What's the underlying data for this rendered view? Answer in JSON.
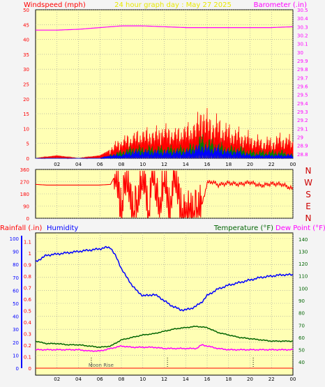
{
  "header": {
    "windspeed_title": "Windspeed (mph)",
    "center_title": "24 hour graph day : May 27 2025",
    "barometer_title": "Barometer (.in)"
  },
  "mid": {
    "compass": [
      "N",
      "W",
      "S",
      "E",
      "N"
    ]
  },
  "bottom_header": {
    "rainfall_title": "Rainfall (.in)",
    "humidity_title": "Humidity",
    "temperature_title": "Temperature (°F)",
    "dewpoint_title": "Dew Point (°F)"
  },
  "annotations": {
    "moon": "Moon Rise"
  },
  "colors": {
    "background": "#f4f4f4",
    "panel": "#ffffb4",
    "wind": "#ff0000",
    "gust": "#ff0000",
    "wind_green": "#008000",
    "wind_blue": "#0000ff",
    "barometer": "#ff00ff",
    "humidity": "#0000ff",
    "temperature": "#006400",
    "dewpoint": "#ff00ff",
    "yellow_text": "#e8e800"
  },
  "chart_data": [
    {
      "type": "line",
      "title": "24 hour graph day : May 27 2025",
      "x_ticks": [
        "02",
        "04",
        "06",
        "08",
        "10",
        "12",
        "14",
        "16",
        "18",
        "20",
        "22",
        "00"
      ],
      "xlim": [
        0,
        24
      ],
      "left_axis": {
        "label": "Windspeed (mph)",
        "ticks": [
          0,
          5,
          10,
          15,
          20,
          25,
          30,
          35,
          40,
          45,
          50
        ],
        "ylim": [
          0,
          50
        ]
      },
      "right_axis": {
        "label": "Barometer (.in)",
        "ticks": [
          28.8,
          28.9,
          29,
          29.1,
          29.2,
          29.3,
          29.4,
          29.5,
          29.6,
          29.7,
          29.8,
          29.9,
          30,
          30.1,
          30.2,
          30.3,
          30.4,
          30.5
        ],
        "ylim": [
          28.75,
          30.5
        ]
      },
      "grid": true,
      "series": [
        {
          "name": "Barometer (.in)",
          "axis": "right",
          "x": [
            0,
            2,
            4,
            6,
            8,
            10,
            12,
            14,
            16,
            18,
            20,
            22,
            24
          ],
          "values": [
            30.26,
            30.26,
            30.27,
            30.29,
            30.31,
            30.31,
            30.3,
            30.29,
            30.29,
            30.29,
            30.29,
            30.29,
            30.3
          ]
        },
        {
          "name": "Windspeed (mph)",
          "axis": "left",
          "x": [
            0,
            2,
            4,
            6,
            7,
            8,
            9,
            10,
            11,
            12,
            13,
            14,
            15,
            15.5,
            16,
            17,
            18,
            19,
            20,
            21,
            22,
            23,
            24
          ],
          "values": [
            0,
            0,
            0,
            0,
            2,
            4,
            5,
            6,
            6,
            7,
            6,
            7,
            8,
            10,
            8,
            7,
            6,
            5,
            4,
            3,
            3,
            4,
            3
          ]
        },
        {
          "name": "gust",
          "axis": "left",
          "x": [
            0,
            2,
            4,
            6,
            7,
            8,
            9,
            10,
            11,
            12,
            13,
            14,
            15,
            15.5,
            16,
            17,
            18,
            19,
            20,
            21,
            22,
            23,
            24
          ],
          "values": [
            0,
            1,
            0,
            1,
            3,
            5,
            6,
            7,
            7,
            8,
            7,
            8,
            9,
            14,
            11,
            10,
            8,
            7,
            6,
            5,
            5,
            6,
            5
          ]
        },
        {
          "name": "average",
          "axis": "left",
          "x": [
            0,
            2,
            4,
            6,
            7,
            8,
            9,
            10,
            11,
            12,
            13,
            14,
            15,
            15.5,
            16,
            17,
            18,
            19,
            20,
            21,
            22,
            23,
            24
          ],
          "values": [
            0,
            0,
            0,
            0,
            1,
            2,
            3,
            3,
            3,
            3,
            3,
            3,
            4,
            6,
            5,
            4,
            3,
            3,
            2,
            2,
            2,
            2,
            1
          ]
        },
        {
          "name": "lull",
          "axis": "left",
          "x": [
            0,
            2,
            4,
            6,
            7,
            8,
            9,
            10,
            11,
            12,
            13,
            14,
            15,
            15.5,
            16,
            17,
            18,
            19,
            20,
            21,
            22,
            23,
            24
          ],
          "values": [
            0,
            0,
            0,
            0,
            1,
            1,
            2,
            2,
            2,
            2,
            2,
            2,
            3,
            4,
            3,
            3,
            2,
            2,
            1,
            1,
            1,
            1,
            1
          ]
        }
      ]
    },
    {
      "type": "line",
      "title": "",
      "x_ticks": [
        "02",
        "04",
        "06",
        "08",
        "10",
        "12",
        "14",
        "16",
        "18",
        "20",
        "22",
        "00"
      ],
      "xlim": [
        0,
        24
      ],
      "y_axis": {
        "ticks": [
          0,
          90,
          180,
          270,
          360
        ],
        "ylim": [
          0,
          360
        ]
      },
      "grid": true,
      "series": [
        {
          "name": "Wind direction",
          "x": [
            0,
            1,
            2,
            3,
            4,
            5,
            6,
            7,
            7.5,
            8,
            8.5,
            9,
            9.5,
            10,
            10.5,
            11,
            11.5,
            12,
            12.5,
            13,
            13.5,
            14,
            14.5,
            15,
            15.5,
            16,
            16.5,
            17,
            18,
            19,
            20,
            21,
            22,
            23,
            24
          ],
          "values": [
            250,
            245,
            245,
            245,
            245,
            245,
            245,
            250,
            330,
            20,
            320,
            40,
            80,
            330,
            20,
            340,
            30,
            300,
            20,
            340,
            60,
            30,
            20,
            40,
            90,
            260,
            270,
            245,
            260,
            250,
            265,
            240,
            255,
            250,
            215
          ]
        }
      ]
    },
    {
      "type": "line",
      "title": "",
      "x_ticks": [
        "02",
        "04",
        "06",
        "08",
        "10",
        "12",
        "14",
        "16",
        "18",
        "20",
        "22",
        "00"
      ],
      "xlim": [
        0,
        24
      ],
      "left_axis_outer": {
        "label": "Rainfall (.in)",
        "ticks": [
          0,
          0.1,
          0.2,
          0.3,
          0.4,
          0.5,
          0.6,
          0.7,
          0.8,
          0.9,
          1,
          1.1
        ],
        "ylim": [
          0,
          1.15
        ]
      },
      "left_axis_inner": {
        "label": "Humidity",
        "ticks": [
          0,
          10,
          20,
          30,
          40,
          50,
          60,
          70,
          80,
          90,
          100
        ],
        "ylim": [
          0,
          100
        ]
      },
      "right_axis": {
        "label": "Temperature (°F)",
        "ticks": [
          40,
          50,
          60,
          70,
          80,
          90,
          100,
          110,
          120,
          130,
          140
        ],
        "ylim": [
          35,
          145
        ]
      },
      "grid": true,
      "series": [
        {
          "name": "Humidity",
          "axis": "humidity",
          "x": [
            0,
            1,
            2,
            3,
            4,
            5,
            6,
            6.5,
            7,
            7.5,
            8,
            8.5,
            9,
            9.5,
            10,
            10.5,
            11,
            11.5,
            12,
            12.5,
            13,
            13.5,
            14,
            14.5,
            15,
            15.5,
            16,
            17,
            18,
            19,
            20,
            21,
            22,
            23,
            24
          ],
          "values": [
            82,
            87,
            88,
            89,
            90,
            91,
            92,
            93,
            93,
            86,
            77,
            70,
            64,
            59,
            56,
            56,
            57,
            55,
            52,
            49,
            47,
            45,
            45,
            46,
            48,
            51,
            56,
            61,
            64,
            66,
            68,
            70,
            71,
            72,
            72
          ]
        },
        {
          "name": "Temperature (°F)",
          "axis": "right",
          "x": [
            0,
            1,
            2,
            3,
            4,
            5,
            6,
            7,
            8,
            9,
            10,
            11,
            12,
            13,
            14,
            15,
            16,
            17,
            18,
            19,
            20,
            21,
            22,
            23,
            24
          ],
          "values": [
            57,
            55,
            55,
            54,
            54,
            53,
            52,
            53,
            58,
            60,
            62,
            63,
            65,
            67,
            68,
            69,
            68,
            64,
            62,
            60,
            59,
            58,
            57,
            57,
            57
          ]
        },
        {
          "name": "Dew Point (°F)",
          "axis": "right",
          "x": [
            0,
            1,
            2,
            3,
            4,
            5,
            6,
            7,
            8,
            9,
            10,
            11,
            12,
            13,
            14,
            15,
            15.5,
            16,
            17,
            18,
            19,
            20,
            21,
            22,
            23,
            24
          ],
          "values": [
            50,
            50,
            50,
            50,
            50,
            49,
            49,
            51,
            53,
            52,
            52,
            52,
            51,
            51,
            51,
            51,
            54,
            53,
            51,
            50,
            50,
            50,
            50,
            50,
            50,
            50
          ]
        },
        {
          "name": "Rainfall (.in)",
          "axis": "rain",
          "x": [
            0,
            24
          ],
          "values": [
            0,
            0
          ]
        }
      ],
      "markers": [
        {
          "label": "Moon Rise",
          "x": 5.2
        },
        {
          "label": "",
          "x": 12.3
        },
        {
          "label": "",
          "x": 20.3
        }
      ]
    }
  ]
}
